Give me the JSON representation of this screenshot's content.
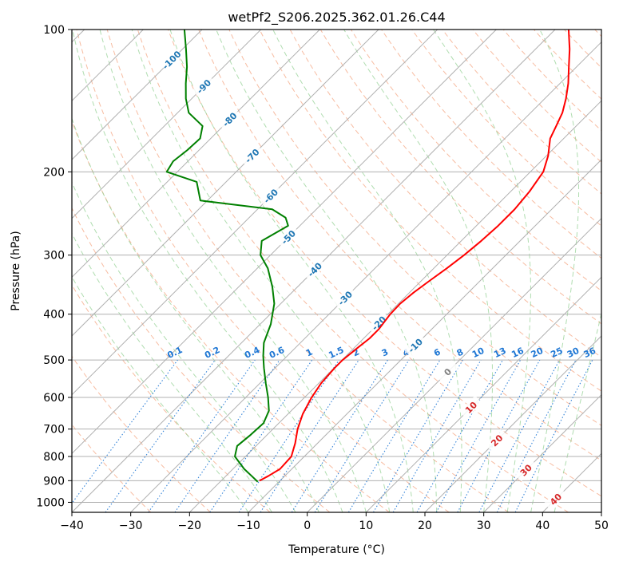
{
  "chart_data": {
    "type": "skewt",
    "title": "wetPf2_S206.2025.362.01.26.C44",
    "xlabel": "Temperature (°C)",
    "ylabel": "Pressure (hPa)",
    "xlim": [
      -40,
      50
    ],
    "ylim": [
      1050,
      100
    ],
    "y_scale": "log",
    "x_ticks": [
      -40,
      -30,
      -20,
      -10,
      0,
      10,
      20,
      30,
      40,
      50
    ],
    "y_ticks": [
      1000,
      900,
      800,
      700,
      600,
      500,
      400,
      300,
      200,
      100
    ],
    "colors": {
      "temperature": "#ff0000",
      "dewpoint": "#008000",
      "grid": "#b0b0b0",
      "dry_adiabat": "#f4a582",
      "moist_adiabat": "#8fce8f",
      "mixing_ratio": "#1f77d4",
      "isotherm_label_blue": "#1f77b4",
      "isotherm_label_red": "#d62728"
    },
    "isotherm_labels": [
      {
        "t": -100,
        "p": 116,
        "text": "-100"
      },
      {
        "t": -90,
        "p": 132,
        "text": "-90"
      },
      {
        "t": -80,
        "p": 155,
        "text": "-80"
      },
      {
        "t": -70,
        "p": 185,
        "text": "-70"
      },
      {
        "t": -60,
        "p": 225,
        "text": "-60"
      },
      {
        "t": -50,
        "p": 275,
        "text": "-50"
      },
      {
        "t": -40,
        "p": 322,
        "text": "-40"
      },
      {
        "t": -30,
        "p": 370,
        "text": "-30"
      },
      {
        "t": -20,
        "p": 418,
        "text": "-20"
      },
      {
        "t": -10,
        "p": 466,
        "text": "-10"
      },
      {
        "t": 0,
        "p": 530,
        "text": "0"
      },
      {
        "t": 10,
        "p": 630,
        "text": "10"
      },
      {
        "t": 20,
        "p": 740,
        "text": "20"
      },
      {
        "t": 30,
        "p": 855,
        "text": "30"
      },
      {
        "t": 40,
        "p": 985,
        "text": "40"
      }
    ],
    "mixing_ratio_labels": [
      "0.1",
      "0.2",
      "0.4",
      "0.6",
      "1",
      "1.5",
      "2",
      "3",
      "4",
      "6",
      "8",
      "10",
      "13",
      "16",
      "20",
      "25",
      "30",
      "36"
    ],
    "mixing_ratio_values": [
      0.1,
      0.2,
      0.4,
      0.6,
      1,
      1.5,
      2,
      3,
      4,
      6,
      8,
      10,
      13,
      16,
      20,
      25,
      30,
      36
    ],
    "temperature": {
      "p": [
        900,
        880,
        850,
        800,
        750,
        700,
        650,
        600,
        560,
        520,
        500,
        470,
        450,
        430,
        400,
        380,
        360,
        340,
        320,
        300,
        280,
        260,
        240,
        220,
        200,
        185,
        170,
        160,
        150,
        140,
        130,
        120,
        110,
        100
      ],
      "t": [
        -13.5,
        -12.8,
        -12.0,
        -12.2,
        -13.8,
        -15.8,
        -17.5,
        -18.8,
        -19.6,
        -19.9,
        -19.9,
        -19.4,
        -19.0,
        -19.0,
        -19.6,
        -19.7,
        -19.3,
        -18.6,
        -17.8,
        -17.1,
        -16.6,
        -16.3,
        -16.3,
        -16.8,
        -17.8,
        -19.7,
        -22.3,
        -23.4,
        -24.6,
        -26.4,
        -28.6,
        -31.3,
        -34.2,
        -37.7
      ]
    },
    "dewpoint": {
      "p": [
        905,
        880,
        850,
        800,
        760,
        720,
        680,
        640,
        600,
        560,
        520,
        490,
        460,
        420,
        380,
        350,
        320,
        300,
        280,
        260,
        250,
        240,
        230,
        210,
        200,
        190,
        180,
        170,
        160,
        150,
        140,
        130,
        120,
        110,
        100
      ],
      "t": [
        -13.6,
        -15.6,
        -18.1,
        -21.8,
        -23.2,
        -22.8,
        -22.6,
        -23.8,
        -26.2,
        -29.0,
        -31.9,
        -34.1,
        -36.2,
        -38.2,
        -41.1,
        -44.3,
        -48.2,
        -51.7,
        -53.9,
        -52.0,
        -53.8,
        -57.5,
        -71.2,
        -75.0,
        -81.8,
        -82.5,
        -82.0,
        -81.8,
        -83.5,
        -88.1,
        -91.0,
        -93.6,
        -96.2,
        -99.4,
        -103.0
      ]
    }
  }
}
